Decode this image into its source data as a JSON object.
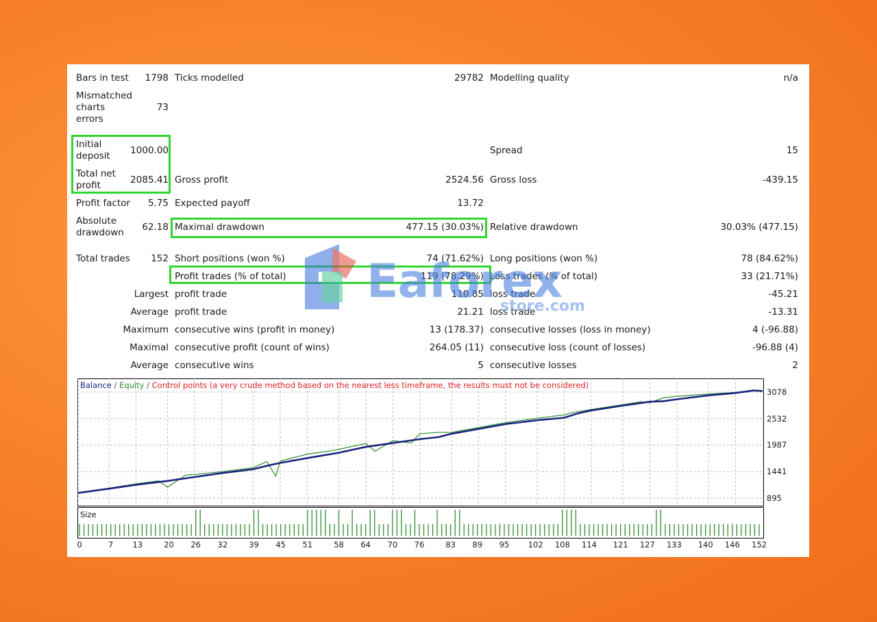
{
  "report": {
    "bars_in_test_label": "Bars in test",
    "bars_in_test": "1798",
    "ticks_modelled_label": "Ticks modelled",
    "ticks_modelled": "29782",
    "modelling_quality_label": "Modelling quality",
    "modelling_quality": "n/a",
    "mismatched_label": "Mismatched charts errors",
    "mismatched": "73",
    "initial_deposit_label": "Initial deposit",
    "initial_deposit": "1000.00",
    "spread_label": "Spread",
    "spread": "15",
    "total_net_profit_label": "Total net profit",
    "total_net_profit": "2085.41",
    "gross_profit_label": "Gross profit",
    "gross_profit": "2524.56",
    "gross_loss_label": "Gross loss",
    "gross_loss": "-439.15",
    "profit_factor_label": "Profit factor",
    "profit_factor": "5.75",
    "expected_payoff_label": "Expected payoff",
    "expected_payoff": "13.72",
    "absolute_drawdown_label": "Absolute drawdown",
    "absolute_drawdown": "62.18",
    "maximal_drawdown_label": "Maximal drawdown",
    "maximal_drawdown": "477.15 (30.03%)",
    "relative_drawdown_label": "Relative drawdown",
    "relative_drawdown": "30.03% (477.15)",
    "total_trades_label": "Total trades",
    "total_trades": "152",
    "short_positions_label": "Short positions (won %)",
    "short_positions": "74 (71.62%)",
    "long_positions_label": "Long positions (won %)",
    "long_positions": "78 (84.62%)",
    "profit_trades_label": "Profit trades (% of total)",
    "profit_trades": "119 (78.29%)",
    "loss_trades_label": "Loss trades (% of total)",
    "loss_trades": "33 (21.71%)",
    "largest_label": "Largest",
    "largest_profit_label": "profit trade",
    "largest_profit": "110.85",
    "largest_loss_label": "loss trade",
    "largest_loss": "-45.21",
    "average_label": "Average",
    "average_profit_label": "profit trade",
    "average_profit": "21.21",
    "average_loss_label": "loss trade",
    "average_loss": "-13.31",
    "maximum_label": "Maximum",
    "max_cons_wins_label": "consecutive wins (profit in money)",
    "max_cons_wins": "13 (178.37)",
    "max_cons_losses_label": "consecutive losses (loss in money)",
    "max_cons_losses": "4 (-96.88)",
    "maximal_label": "Maximal",
    "maximal_cons_profit_label": "consecutive profit (count of wins)",
    "maximal_cons_profit": "264.05 (11)",
    "maximal_cons_loss_label": "consecutive loss (count of losses)",
    "maximal_cons_loss": "-96.88 (4)",
    "average2_label": "Average",
    "avg_cons_wins_label": "consecutive wins",
    "avg_cons_wins": "5",
    "avg_cons_losses_label": "consecutive losses",
    "avg_cons_losses": "2"
  },
  "watermark": {
    "brand": "Eaforex",
    "sub": "store.com"
  },
  "chart": {
    "legend_balance": "Balance",
    "legend_sep1": " / ",
    "legend_equity": "Equity",
    "legend_sep2": " / ",
    "legend_control": "Control points (a very crude method based on the nearest less timeframe, the results must not be considered)",
    "size_label": "Size",
    "colors": {
      "balance": "#1a237e",
      "equity": "#2e8b2e",
      "control": "#e02020"
    }
  },
  "chart_data": {
    "type": "line",
    "x_ticks": [
      "0",
      "7",
      "13",
      "20",
      "26",
      "32",
      "39",
      "45",
      "51",
      "58",
      "64",
      "70",
      "76",
      "83",
      "89",
      "95",
      "102",
      "108",
      "114",
      "121",
      "127",
      "133",
      "140",
      "146",
      "152"
    ],
    "y_ticks": [
      "3078",
      "2532",
      "1987",
      "1441",
      "895"
    ],
    "xlim": [
      0,
      152
    ],
    "ylim": [
      895,
      3078
    ],
    "series": [
      {
        "name": "Balance",
        "x": [
          0,
          7,
          13,
          20,
          26,
          32,
          39,
          42,
          45,
          51,
          58,
          64,
          70,
          76,
          80,
          83,
          89,
          95,
          102,
          108,
          111,
          114,
          121,
          127,
          130,
          133,
          140,
          146,
          150,
          152
        ],
        "y": [
          1000,
          1090,
          1170,
          1250,
          1330,
          1410,
          1490,
          1560,
          1620,
          1720,
          1830,
          1950,
          2030,
          2110,
          2150,
          2220,
          2320,
          2420,
          2500,
          2550,
          2640,
          2700,
          2800,
          2880,
          2890,
          2930,
          3010,
          3060,
          3110,
          3100
        ]
      },
      {
        "name": "Equity",
        "x": [
          0,
          7,
          13,
          18,
          20,
          24,
          26,
          32,
          39,
          42,
          44,
          45,
          51,
          57,
          58,
          64,
          66,
          70,
          74,
          76,
          80,
          83,
          89,
          95,
          102,
          108,
          110,
          114,
          121,
          125,
          127,
          130,
          133,
          140,
          146,
          150,
          152
        ],
        "y": [
          1000,
          1100,
          1190,
          1250,
          1120,
          1370,
          1380,
          1440,
          1520,
          1650,
          1350,
          1660,
          1800,
          1880,
          1900,
          2020,
          1860,
          2080,
          2030,
          2220,
          2250,
          2250,
          2350,
          2450,
          2540,
          2610,
          2660,
          2720,
          2820,
          2880,
          2860,
          2960,
          2990,
          3040,
          3070,
          3120,
          3100
        ]
      }
    ],
    "size_series": {
      "name": "Size",
      "x_range": [
        0,
        152
      ],
      "tall_bars_x": [
        26,
        27,
        39,
        40,
        51,
        52,
        53,
        54,
        55,
        58,
        61,
        65,
        66,
        70,
        71,
        72,
        75,
        80,
        84,
        85,
        108,
        109,
        110,
        111,
        129,
        130
      ]
    }
  }
}
